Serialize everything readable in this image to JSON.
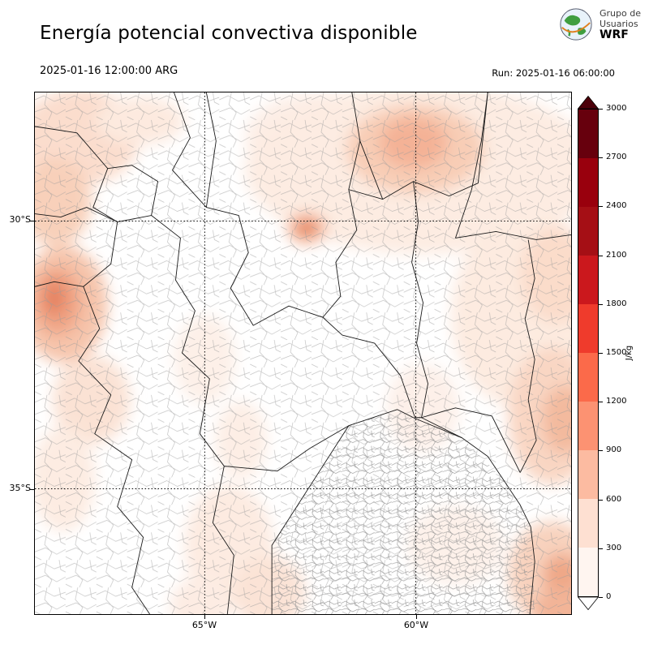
{
  "header": {
    "title": "Energía potencial convectiva disponible",
    "logo": {
      "line1": "Grupo de",
      "line2": "Usuarios",
      "line3": "WRF"
    }
  },
  "subheader": {
    "valid_time": "2025-01-16 12:00:00 ARG",
    "run_label": "Run: 2025-01-16 06:00:00"
  },
  "map": {
    "lat_ticks": [
      "30°S",
      "35°S"
    ],
    "lon_ticks": [
      "65°W",
      "60°W"
    ]
  },
  "colorbar": {
    "unit": "J/kg",
    "ticks": [
      "3000",
      "2700",
      "2400",
      "2100",
      "1800",
      "1500",
      "1200",
      "900",
      "600",
      "300",
      "0"
    ],
    "segments_top_to_bottom": [
      "#67000d",
      "#99000d",
      "#a50f15",
      "#cb181d",
      "#ef3b2c",
      "#fb6a4a",
      "#fc9272",
      "#fcbba1",
      "#fee0d2",
      "#fff5f0"
    ],
    "arrow_top_color": "#4c000a",
    "arrow_bottom_color": "#ffffff"
  },
  "chart_data": {
    "type": "heatmap",
    "title": "Energía potencial convectiva disponible",
    "valid_time": "2025-01-16 12:00:00 ARG",
    "run": "Run: 2025-01-16 06:00:00",
    "unit": "J/kg",
    "levels": [
      0,
      300,
      600,
      900,
      1200,
      1500,
      1800,
      2100,
      2400,
      2700,
      3000
    ],
    "colors_low_to_high": [
      "#fff5f0",
      "#fee0d2",
      "#fcbba1",
      "#fc9272",
      "#fb6a4a",
      "#ef3b2c",
      "#cb181d",
      "#a50f15",
      "#99000d",
      "#67000d"
    ],
    "x_ticks": [
      "65°W",
      "60°W"
    ],
    "y_ticks": [
      "30°S",
      "35°S"
    ],
    "legend_position": "right"
  }
}
